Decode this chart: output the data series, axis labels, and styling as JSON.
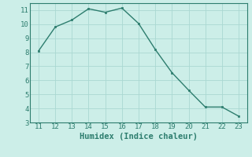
{
  "x_data": [
    11,
    12,
    13,
    14,
    15,
    16,
    17,
    18,
    19,
    20,
    21,
    22,
    23
  ],
  "y_data": [
    8.1,
    9.8,
    10.3,
    11.1,
    10.85,
    11.15,
    10.05,
    8.2,
    6.55,
    5.3,
    4.1,
    4.1,
    3.45
  ],
  "xlabel": "Humidex (Indice chaleur)",
  "xlim": [
    10.5,
    23.5
  ],
  "ylim": [
    3,
    11.5
  ],
  "yticks": [
    3,
    4,
    5,
    6,
    7,
    8,
    9,
    10,
    11
  ],
  "xticks": [
    11,
    12,
    13,
    14,
    15,
    16,
    17,
    18,
    19,
    20,
    21,
    22,
    23
  ],
  "line_color": "#2d7d6e",
  "marker_color": "#2d7d6e",
  "bg_color": "#cceee8",
  "grid_color": "#aad8d2",
  "axis_color": "#2d7d6e",
  "xlabel_fontsize": 7.5,
  "tick_fontsize": 6.5
}
